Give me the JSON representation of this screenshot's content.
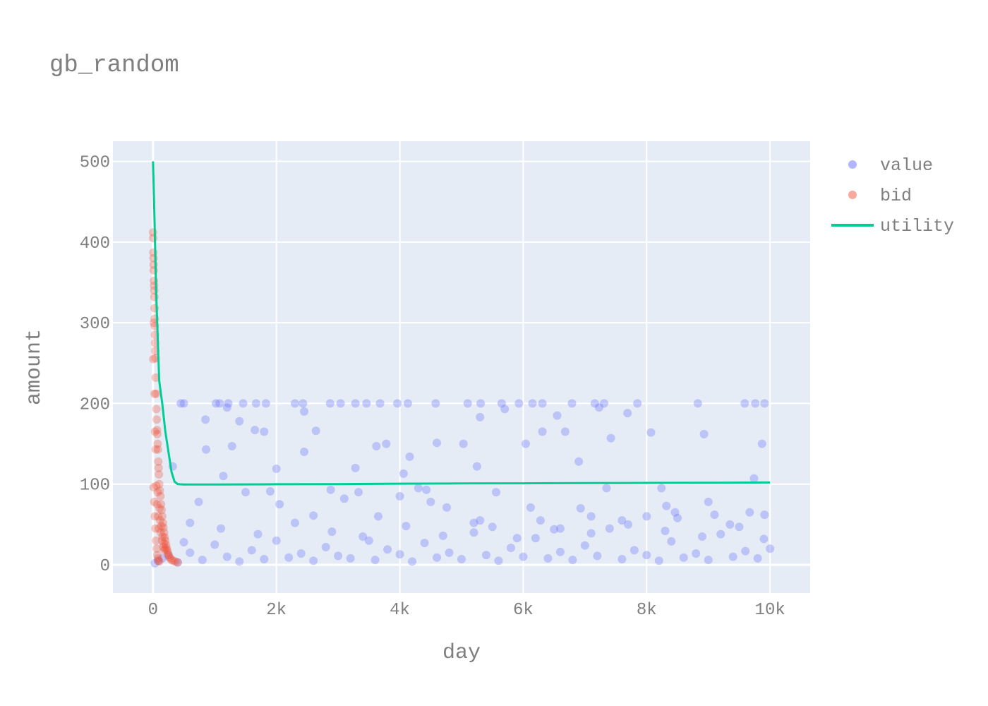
{
  "chart_data": {
    "type": "scatter",
    "title": "gb_random",
    "xlabel": "day",
    "ylabel": "amount",
    "xlim": [
      -650,
      10650
    ],
    "ylim": [
      -35,
      525
    ],
    "x_ticks": [
      0,
      2000,
      4000,
      6000,
      8000,
      10000
    ],
    "x_tick_labels": [
      "0",
      "2k",
      "4k",
      "6k",
      "8k",
      "10k"
    ],
    "y_ticks": [
      0,
      100,
      200,
      300,
      400,
      500
    ],
    "y_tick_labels": [
      "0",
      "100",
      "200",
      "300",
      "400",
      "500"
    ],
    "grid": true,
    "legend_position": "right",
    "background": "#e5ecf6",
    "series": [
      {
        "name": "value",
        "mode": "markers",
        "color": "#636efa",
        "points": [
          [
            30,
            2
          ],
          [
            80,
            5
          ],
          [
            150,
            8
          ],
          [
            250,
            12
          ],
          [
            400,
            3
          ],
          [
            600,
            15
          ],
          [
            800,
            6
          ],
          [
            1000,
            25
          ],
          [
            1200,
            10
          ],
          [
            1400,
            4
          ],
          [
            1600,
            18
          ],
          [
            1800,
            7
          ],
          [
            2000,
            30
          ],
          [
            2200,
            9
          ],
          [
            2400,
            14
          ],
          [
            2600,
            5
          ],
          [
            2800,
            22
          ],
          [
            3000,
            11
          ],
          [
            3200,
            8
          ],
          [
            3400,
            35
          ],
          [
            3600,
            6
          ],
          [
            3800,
            19
          ],
          [
            4000,
            13
          ],
          [
            4200,
            4
          ],
          [
            4400,
            27
          ],
          [
            4600,
            9
          ],
          [
            4800,
            15
          ],
          [
            5000,
            7
          ],
          [
            5200,
            40
          ],
          [
            5400,
            12
          ],
          [
            5600,
            5
          ],
          [
            5800,
            21
          ],
          [
            6000,
            10
          ],
          [
            6200,
            33
          ],
          [
            6400,
            8
          ],
          [
            6600,
            16
          ],
          [
            6800,
            6
          ],
          [
            7000,
            24
          ],
          [
            7200,
            11
          ],
          [
            7400,
            45
          ],
          [
            7600,
            7
          ],
          [
            7800,
            18
          ],
          [
            8000,
            12
          ],
          [
            8200,
            5
          ],
          [
            8400,
            29
          ],
          [
            8600,
            9
          ],
          [
            8800,
            14
          ],
          [
            9000,
            6
          ],
          [
            9200,
            38
          ],
          [
            9400,
            10
          ],
          [
            9600,
            17
          ],
          [
            9800,
            8
          ],
          [
            10000,
            20
          ],
          [
            500,
            28
          ],
          [
            1100,
            45
          ],
          [
            1700,
            38
          ],
          [
            2300,
            52
          ],
          [
            2900,
            41
          ],
          [
            3500,
            30
          ],
          [
            4100,
            48
          ],
          [
            4700,
            36
          ],
          [
            5300,
            55
          ],
          [
            5900,
            33
          ],
          [
            6500,
            44
          ],
          [
            7100,
            39
          ],
          [
            7700,
            50
          ],
          [
            8300,
            42
          ],
          [
            8900,
            35
          ],
          [
            9500,
            47
          ],
          [
            9900,
            32
          ],
          [
            450,
            200
          ],
          [
            500,
            200
          ],
          [
            1020,
            200
          ],
          [
            1080,
            200
          ],
          [
            1220,
            200
          ],
          [
            1460,
            200
          ],
          [
            1670,
            200
          ],
          [
            1830,
            200
          ],
          [
            2300,
            200
          ],
          [
            2430,
            200
          ],
          [
            2870,
            200
          ],
          [
            3040,
            200
          ],
          [
            3280,
            200
          ],
          [
            3460,
            200
          ],
          [
            3680,
            200
          ],
          [
            3960,
            200
          ],
          [
            4130,
            200
          ],
          [
            4580,
            200
          ],
          [
            5100,
            200
          ],
          [
            5310,
            200
          ],
          [
            5650,
            200
          ],
          [
            5930,
            200
          ],
          [
            6150,
            200
          ],
          [
            6310,
            200
          ],
          [
            6790,
            200
          ],
          [
            7160,
            200
          ],
          [
            7310,
            200
          ],
          [
            7850,
            200
          ],
          [
            8830,
            200
          ],
          [
            9590,
            200
          ],
          [
            9760,
            200
          ],
          [
            9910,
            200
          ],
          [
            850,
            180
          ],
          [
            1200,
            195
          ],
          [
            1400,
            178
          ],
          [
            1650,
            167
          ],
          [
            1800,
            165
          ],
          [
            2450,
            190
          ],
          [
            2640,
            166
          ],
          [
            3620,
            147
          ],
          [
            3780,
            150
          ],
          [
            4160,
            134
          ],
          [
            4600,
            151
          ],
          [
            5030,
            150
          ],
          [
            5300,
            183
          ],
          [
            5700,
            193
          ],
          [
            6040,
            150
          ],
          [
            6310,
            165
          ],
          [
            6550,
            185
          ],
          [
            6680,
            165
          ],
          [
            7230,
            195
          ],
          [
            7420,
            157
          ],
          [
            7690,
            188
          ],
          [
            8070,
            164
          ],
          [
            8930,
            162
          ],
          [
            9870,
            150
          ],
          [
            2450,
            140
          ],
          [
            3280,
            120
          ],
          [
            4060,
            113
          ],
          [
            5250,
            122
          ],
          [
            6900,
            128
          ],
          [
            9740,
            107
          ],
          [
            320,
            122
          ],
          [
            860,
            143
          ],
          [
            1140,
            110
          ],
          [
            1280,
            147
          ],
          [
            2000,
            119
          ],
          [
            2880,
            93
          ],
          [
            3330,
            90
          ],
          [
            4300,
            95
          ],
          [
            4430,
            93
          ],
          [
            5560,
            90
          ],
          [
            6120,
            71
          ],
          [
            6930,
            70
          ],
          [
            7350,
            95
          ],
          [
            8240,
            95
          ],
          [
            8320,
            73
          ],
          [
            8460,
            65
          ],
          [
            9000,
            78
          ],
          [
            9670,
            65
          ],
          [
            9910,
            62
          ],
          [
            600,
            52
          ],
          [
            740,
            78
          ],
          [
            1500,
            90
          ],
          [
            1900,
            91
          ],
          [
            2050,
            75
          ],
          [
            2600,
            61
          ],
          [
            3100,
            82
          ],
          [
            3650,
            60
          ],
          [
            4000,
            85
          ],
          [
            4500,
            78
          ],
          [
            4760,
            71
          ],
          [
            5200,
            52
          ],
          [
            5500,
            47
          ],
          [
            6280,
            55
          ],
          [
            6600,
            45
          ],
          [
            7100,
            60
          ],
          [
            7600,
            55
          ],
          [
            8000,
            60
          ],
          [
            8500,
            58
          ],
          [
            9100,
            62
          ],
          [
            9350,
            50
          ]
        ]
      },
      {
        "name": "bid",
        "mode": "markers",
        "color": "#ef553b",
        "points": [
          [
            1,
            412
          ],
          [
            3,
            405
          ],
          [
            5,
            387
          ],
          [
            8,
            380
          ],
          [
            10,
            372
          ],
          [
            12,
            365
          ],
          [
            15,
            352
          ],
          [
            18,
            346
          ],
          [
            20,
            340
          ],
          [
            22,
            332
          ],
          [
            25,
            318
          ],
          [
            28,
            305
          ],
          [
            30,
            296
          ],
          [
            32,
            285
          ],
          [
            35,
            275
          ],
          [
            38,
            265
          ],
          [
            40,
            256
          ],
          [
            45,
            232
          ],
          [
            50,
            212
          ],
          [
            55,
            193
          ],
          [
            60,
            180
          ],
          [
            65,
            167
          ],
          [
            70,
            162
          ],
          [
            75,
            150
          ],
          [
            80,
            143
          ],
          [
            85,
            128
          ],
          [
            90,
            120
          ],
          [
            95,
            112
          ],
          [
            100,
            100
          ],
          [
            110,
            92
          ],
          [
            120,
            85
          ],
          [
            130,
            75
          ],
          [
            140,
            68
          ],
          [
            150,
            60
          ],
          [
            160,
            52
          ],
          [
            170,
            46
          ],
          [
            180,
            40
          ],
          [
            190,
            34
          ],
          [
            200,
            30
          ],
          [
            210,
            25
          ],
          [
            220,
            21
          ],
          [
            230,
            18
          ],
          [
            240,
            15
          ],
          [
            250,
            12
          ],
          [
            260,
            10
          ],
          [
            280,
            8
          ],
          [
            300,
            6
          ],
          [
            330,
            5
          ],
          [
            360,
            4
          ],
          [
            400,
            3
          ],
          [
            5,
            255
          ],
          [
            15,
            300
          ],
          [
            25,
            212
          ],
          [
            35,
            165
          ],
          [
            45,
            143
          ],
          [
            55,
            98
          ],
          [
            65,
            75
          ],
          [
            75,
            90
          ],
          [
            85,
            60
          ],
          [
            95,
            45
          ],
          [
            105,
            70
          ],
          [
            115,
            55
          ],
          [
            125,
            40
          ],
          [
            135,
            48
          ],
          [
            145,
            30
          ],
          [
            155,
            35
          ],
          [
            165,
            22
          ],
          [
            175,
            26
          ],
          [
            185,
            18
          ],
          [
            195,
            20
          ],
          [
            10,
            96
          ],
          [
            20,
            78
          ],
          [
            30,
            60
          ],
          [
            40,
            45
          ],
          [
            50,
            30
          ],
          [
            60,
            20
          ],
          [
            70,
            12
          ],
          [
            80,
            8
          ],
          [
            90,
            5
          ],
          [
            100,
            4
          ]
        ]
      },
      {
        "name": "utility",
        "mode": "lines",
        "color": "#00cc96",
        "points": [
          [
            0,
            500
          ],
          [
            20,
            440
          ],
          [
            50,
            340
          ],
          [
            100,
            228
          ],
          [
            150,
            200
          ],
          [
            200,
            165
          ],
          [
            250,
            140
          ],
          [
            300,
            115
          ],
          [
            350,
            103
          ],
          [
            400,
            100
          ],
          [
            500,
            99.5
          ],
          [
            1000,
            99.5
          ],
          [
            2000,
            99.8
          ],
          [
            3000,
            100
          ],
          [
            4000,
            100.5
          ],
          [
            5000,
            100.8
          ],
          [
            6000,
            101
          ],
          [
            7000,
            101.2
          ],
          [
            8000,
            101.5
          ],
          [
            9000,
            101.7
          ],
          [
            10000,
            102
          ]
        ]
      }
    ]
  }
}
